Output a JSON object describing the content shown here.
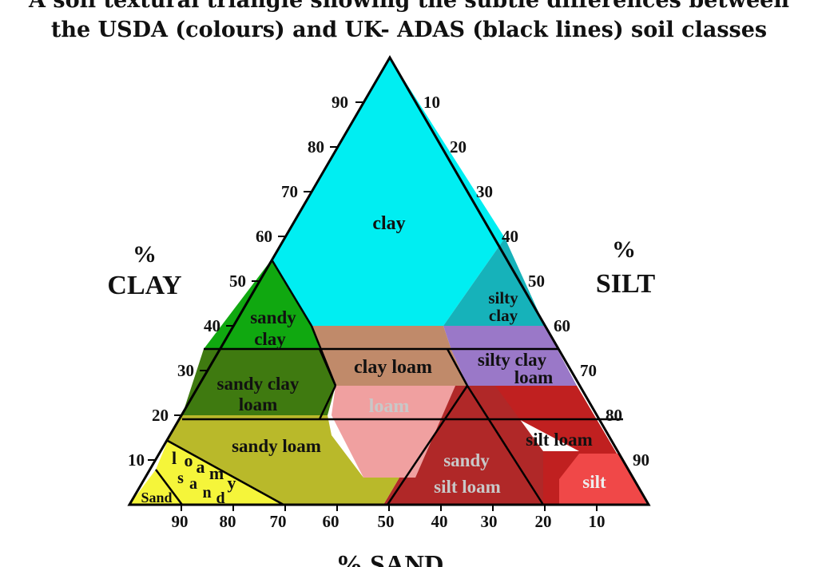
{
  "title": {
    "line1": "A soil textural triangle showing the subtle differences between",
    "line2": "the USDA (colours) and UK- ADAS (black lines) soil classes"
  },
  "axes": {
    "clay": {
      "percent": "%",
      "word": "CLAY",
      "ticks": [
        "90",
        "80",
        "70",
        "60",
        "50",
        "40",
        "30",
        "20",
        "10"
      ]
    },
    "silt": {
      "percent": "%",
      "word": "SILT",
      "ticks": [
        "10",
        "20",
        "30",
        "40",
        "50",
        "60",
        "70",
        "80",
        "90"
      ]
    },
    "sand": {
      "label": "% SAND",
      "ticks": [
        "90",
        "80",
        "70",
        "60",
        "50",
        "40",
        "30",
        "20",
        "10"
      ]
    }
  },
  "classes": {
    "clay": "clay",
    "silty_clay_1": "silty",
    "silty_clay_2": "clay",
    "sandy_clay_1": "sandy",
    "sandy_clay_2": "clay",
    "silty_clay_loam_1": "silty clay",
    "silty_clay_loam_2": "loam",
    "clay_loam": "clay loam",
    "sandy_clay_loam_1": "sandy clay",
    "sandy_clay_loam_2": "loam",
    "loam": "loam",
    "silt_loam": "silt loam",
    "sandy_loam": "sandy loam",
    "sandy_silt_loam_1": "sandy",
    "sandy_silt_loam_2": "silt loam",
    "silt": "silt",
    "loamy_sand_chars": [
      "l",
      "o",
      "a",
      "m",
      "y",
      "s",
      "a",
      "n",
      "d"
    ],
    "sand": "Sand"
  },
  "colors": {
    "clay": "#00eef2",
    "silty_clay": "#16b2ba",
    "sandy_clay": "#10a810",
    "silty_clay_loam": "#9a78c8",
    "clay_loam": "#c08a6a",
    "sandy_clay_loam": "#3f7a10",
    "loam": "#f0a0a0",
    "silt_loam": "#c02020",
    "sandy_loam": "#b9b92a",
    "loamy_sand": "#f5f53a",
    "sand": "#f5f53a",
    "silt": "#f04848",
    "sandy_silt_loam": "#b02828",
    "grey_label": "#c8c8c8"
  }
}
